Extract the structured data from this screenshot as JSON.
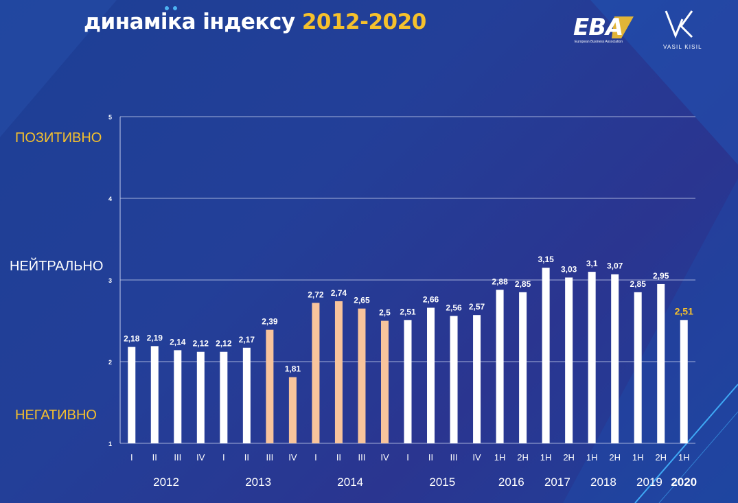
{
  "header": {
    "title_main": "динаміка індексу",
    "title_years": "2012-2020"
  },
  "logos": {
    "eba": "EBA",
    "eba_sub": "European Business Association",
    "vk_sub": "VASIL KISIL"
  },
  "zones": {
    "positive": "ПОЗИТИВНО",
    "neutral": "НЕЙТРАЛЬНО",
    "negative": "НЕГАТИВНО"
  },
  "colors": {
    "white_bar": "#ffffff",
    "highlight_bar": "#f8c49c",
    "accent": "#f6c12c",
    "grid": "#c4cdec"
  },
  "chart_data": {
    "type": "bar",
    "ylim": [
      1,
      5
    ],
    "yticks": [
      "1",
      "2",
      "3",
      "4",
      "5"
    ],
    "grid": true,
    "categories": [
      "I",
      "II",
      "III",
      "IV",
      "I",
      "II",
      "III",
      "IV",
      "I",
      "II",
      "III",
      "IV",
      "I",
      "II",
      "III",
      "IV",
      "1H",
      "2H",
      "1H",
      "2H",
      "1H",
      "2H",
      "1H",
      "2H",
      "1H"
    ],
    "values": [
      2.18,
      2.19,
      2.14,
      2.12,
      2.12,
      2.17,
      2.39,
      1.81,
      2.72,
      2.74,
      2.65,
      2.5,
      2.51,
      2.66,
      2.56,
      2.57,
      2.88,
      2.85,
      3.15,
      3.03,
      3.1,
      3.07,
      2.85,
      2.95,
      2.51
    ],
    "value_labels": [
      "2,18",
      "2,19",
      "2,14",
      "2,12",
      "2,12",
      "2,17",
      "2,39",
      "1,81",
      "2,72",
      "2,74",
      "2,65",
      "2,5",
      "2,51",
      "2,66",
      "2,56",
      "2,57",
      "2,88",
      "2,85",
      "3,15",
      "3,03",
      "3,1",
      "3,07",
      "2,85",
      "2,95",
      "2,51"
    ],
    "bar_colors": [
      "white",
      "white",
      "white",
      "white",
      "white",
      "white",
      "highlight",
      "highlight",
      "highlight",
      "highlight",
      "highlight",
      "highlight",
      "white",
      "white",
      "white",
      "white",
      "white",
      "white",
      "white",
      "white",
      "white",
      "white",
      "white",
      "white",
      "white"
    ],
    "label_colors": [
      "white",
      "white",
      "white",
      "white",
      "white",
      "white",
      "white",
      "white",
      "white",
      "white",
      "white",
      "white",
      "white",
      "white",
      "white",
      "white",
      "white",
      "white",
      "white",
      "white",
      "white",
      "white",
      "white",
      "white",
      "accent"
    ],
    "year_groups": [
      {
        "label": "2012",
        "start": 0,
        "end": 3,
        "bold": false
      },
      {
        "label": "2013",
        "start": 4,
        "end": 7,
        "bold": false
      },
      {
        "label": "2014",
        "start": 8,
        "end": 11,
        "bold": false
      },
      {
        "label": "2015",
        "start": 12,
        "end": 15,
        "bold": false
      },
      {
        "label": "2016",
        "start": 16,
        "end": 17,
        "bold": false
      },
      {
        "label": "2017",
        "start": 18,
        "end": 19,
        "bold": false
      },
      {
        "label": "2018",
        "start": 20,
        "end": 21,
        "bold": false
      },
      {
        "label": "2019",
        "start": 22,
        "end": 23,
        "bold": false
      },
      {
        "label": "2020",
        "start": 24,
        "end": 24,
        "bold": true
      }
    ]
  }
}
